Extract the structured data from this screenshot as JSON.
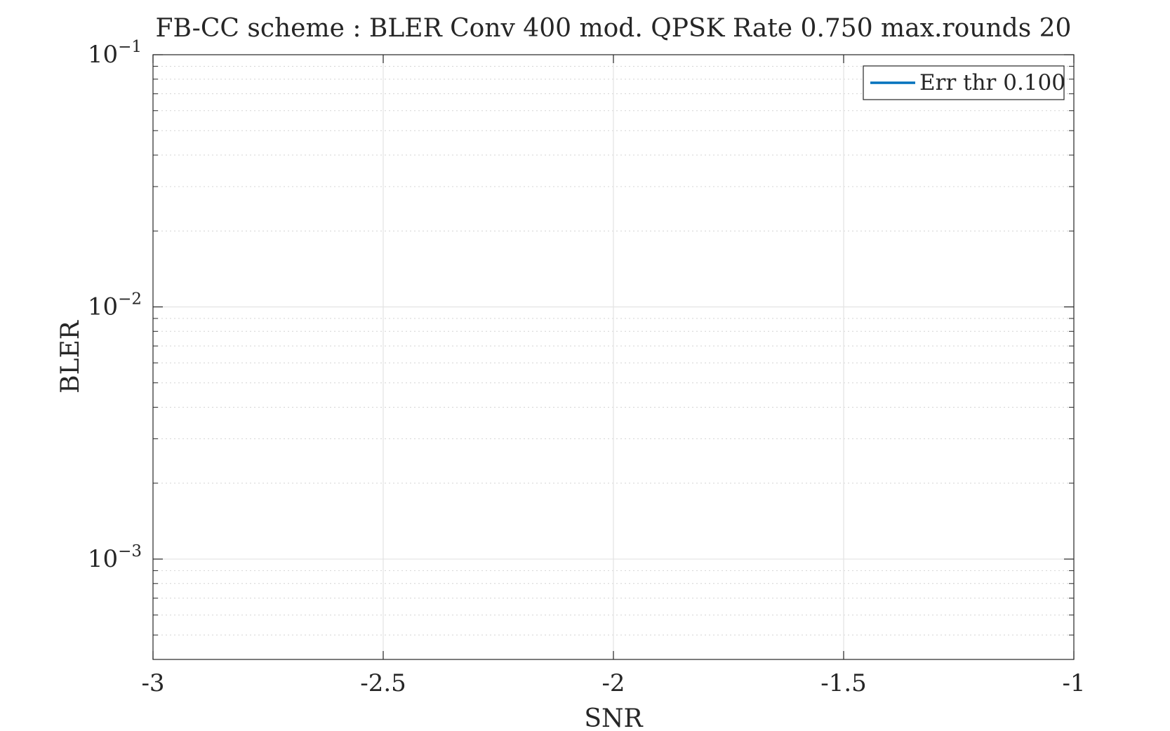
{
  "chart_data": {
    "type": "line",
    "title": "FB-CC scheme : BLER Conv 400 mod. QPSK Rate 0.750 max.rounds 20",
    "xlabel": "SNR",
    "ylabel": "BLER",
    "xlim": [
      -3,
      -1
    ],
    "ylim": [
      0.0004,
      0.1
    ],
    "yscale": "log",
    "x_ticks": [
      -3,
      -2.5,
      -2,
      -1.5,
      -1
    ],
    "x_tick_labels": [
      "-3",
      "-2.5",
      "-2",
      "-1.5",
      "-1"
    ],
    "y_ticks": [
      0.001,
      0.01,
      0.1
    ],
    "y_tick_labels": [
      {
        "base": "10",
        "exp": "−3"
      },
      {
        "base": "10",
        "exp": "−2"
      },
      {
        "base": "10",
        "exp": "−1"
      }
    ],
    "grid": "on",
    "minor_grid": "on",
    "legend_placement": "top-right",
    "series": [
      {
        "name": "Err thr 0.100",
        "color": "#0072BD",
        "x": [],
        "y": []
      }
    ]
  }
}
